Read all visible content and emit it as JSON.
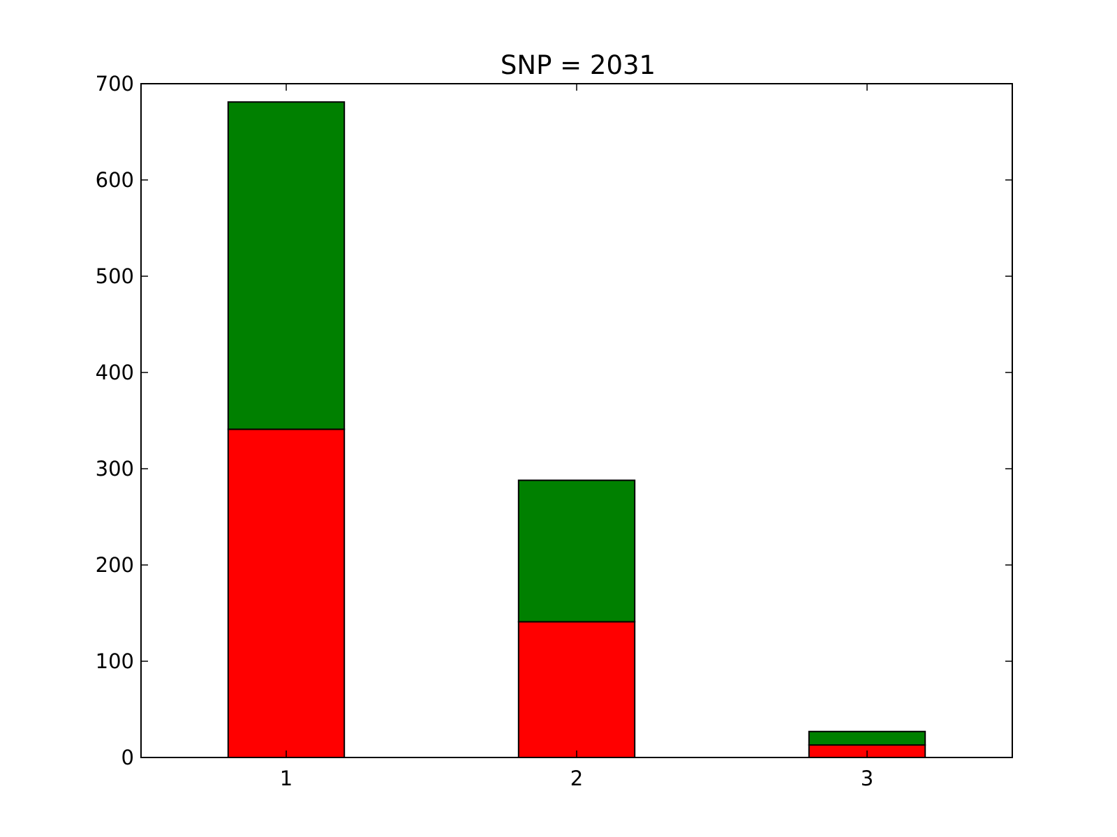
{
  "chart_data": {
    "type": "bar",
    "stacked": true,
    "title": "SNP = 2031",
    "xlabel": "",
    "ylabel": "",
    "categories": [
      "1",
      "2",
      "3"
    ],
    "ylim": [
      0,
      700
    ],
    "xlim": [
      0.5,
      3.5
    ],
    "yticks": [
      "0",
      "100",
      "200",
      "300",
      "400",
      "500",
      "600",
      "700"
    ],
    "series": [
      {
        "values": [
          341,
          141,
          13
        ],
        "color": "#ff0000"
      },
      {
        "values": [
          340,
          147,
          14
        ],
        "color": "#008000"
      }
    ],
    "grid": false,
    "legend": "none"
  }
}
